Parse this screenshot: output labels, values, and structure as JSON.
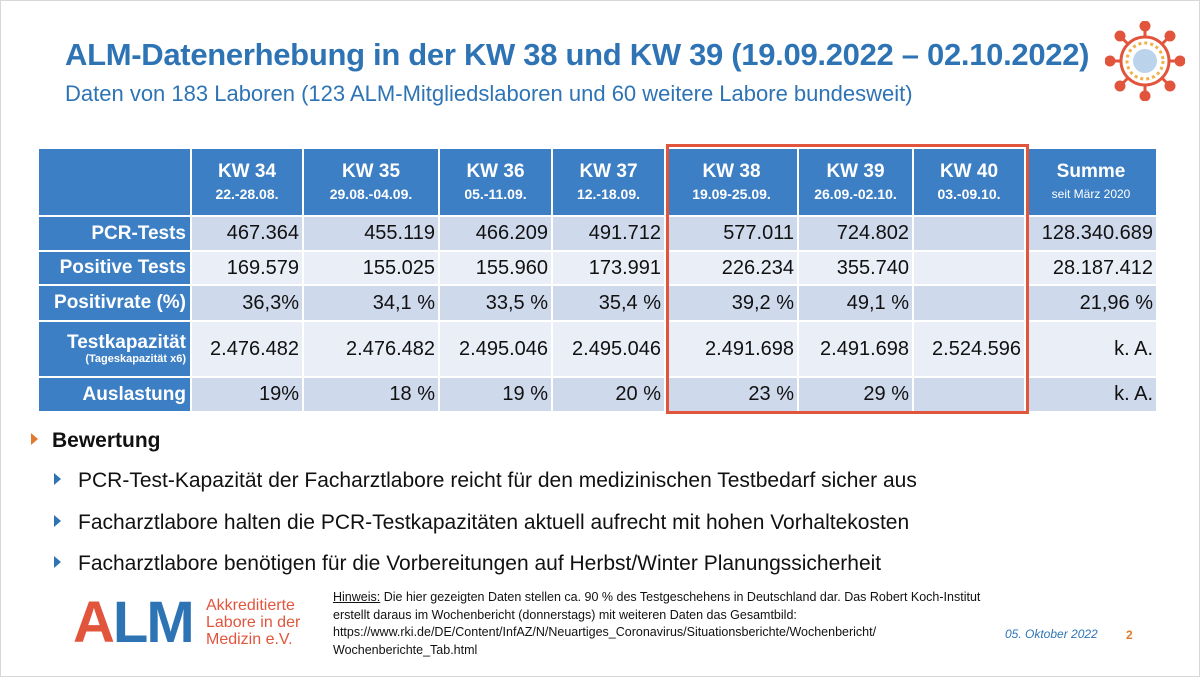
{
  "title": "ALM-Datenerhebung in der KW 38 und KW 39 (19.09.2022 – 02.10.2022)",
  "subtitle": "Daten von 183 Laboren (123 ALM-Mitgliedslaboren und 60 weitere Labore bundesweit)",
  "table": {
    "columns": [
      {
        "kw": "KW 34",
        "dates": "22.-28.08."
      },
      {
        "kw": "KW 35",
        "dates": "29.08.-04.09."
      },
      {
        "kw": "KW 36",
        "dates": "05.-11.09."
      },
      {
        "kw": "KW 37",
        "dates": "12.-18.09."
      },
      {
        "kw": "KW 38",
        "dates": "19.09-25.09."
      },
      {
        "kw": "KW 39",
        "dates": "26.09.-02.10."
      },
      {
        "kw": "KW 40",
        "dates": "03.-09.10."
      },
      {
        "kw": "Summe",
        "dates": "seit März 2020"
      }
    ],
    "rows": [
      {
        "label": "PCR-Tests",
        "sublabel": "",
        "values": [
          "467.364",
          "455.119",
          "466.209",
          "491.712",
          "577.011",
          "724.802",
          "",
          "128.340.689"
        ]
      },
      {
        "label": "Positive Tests",
        "sublabel": "",
        "values": [
          "169.579",
          "155.025",
          "155.960",
          "173.991",
          "226.234",
          "355.740",
          "",
          "28.187.412"
        ]
      },
      {
        "label": "Positivrate (%)",
        "sublabel": "",
        "values": [
          "36,3%",
          "34,1 %",
          "33,5 %",
          "35,4 %",
          "39,2 %",
          "49,1 %",
          "",
          "21,96 %"
        ]
      },
      {
        "label": "Testkapazität",
        "sublabel": "(Tageskapazität x6)",
        "values": [
          "2.476.482",
          "2.476.482",
          "2.495.046",
          "2.495.046",
          "2.491.698",
          "2.491.698",
          "2.524.596",
          "k. A."
        ]
      },
      {
        "label": "Auslastung",
        "sublabel": "",
        "values": [
          "19%",
          "18 %",
          "19 %",
          "20 %",
          "23 %",
          "29 %",
          "",
          "k. A."
        ]
      }
    ]
  },
  "assessment": {
    "heading": "Bewertung",
    "bullets": [
      "PCR-Test-Kapazität der Facharztlabore reicht für den medizinischen Testbedarf sicher aus",
      "Facharztlabore halten die PCR-Testkapazitäten aktuell aufrecht mit hohen Vorhaltekosten",
      "Facharztlabore benötigen für die Vorbereitungen auf Herbst/Winter Planungssicherheit"
    ]
  },
  "logo": {
    "mark_a": "A",
    "mark_lm": "LM",
    "line1": "Akkreditierte",
    "line2": "Labore in der",
    "line3": "Medizin e.V."
  },
  "hint": {
    "label": "Hinweis:",
    "text": " Die hier gezeigten Daten stellen ca. 90 % des Testgeschehens in Deutschland dar. Das Robert Koch-Institut erstellt daraus im Wochenbericht (donnerstags) mit weiteren Daten das Gesamtbild:",
    "url1": "https://www.rki.de/DE/Content/InfAZ/N/Neuartiges_Coronavirus/Situationsberichte/Wochenbericht/",
    "url2": "Wochenberichte_Tab.html"
  },
  "footer": {
    "date": "05. Oktober 2022",
    "page": "2"
  },
  "colors": {
    "accent": "#2e74b5",
    "header_bg": "#3d7fc4",
    "highlight": "#e2553d",
    "row_dark": "#cfd9ec",
    "row_light": "#e9eef7"
  }
}
